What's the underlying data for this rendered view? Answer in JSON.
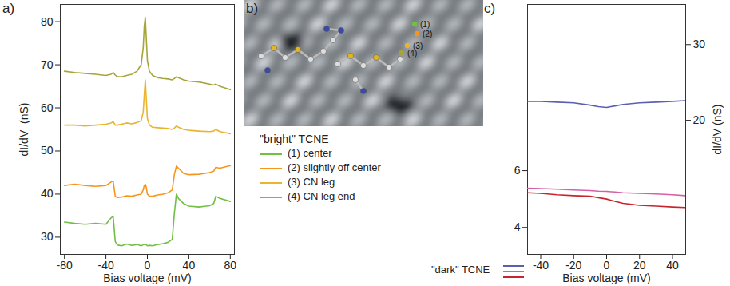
{
  "chart_data": [
    {
      "panel_label": "a)",
      "type": "line",
      "x_label": "Bias voltage (mV)",
      "y_label": "dI/dV  (nS)",
      "legend_title": "\"bright\" TCNE",
      "x": [
        -80,
        -70,
        -60,
        -50,
        -40,
        -35,
        -33,
        -31,
        -29,
        -25,
        -20,
        -15,
        -10,
        -6,
        -4,
        -3,
        -2,
        -1,
        0,
        2,
        5,
        10,
        15,
        20,
        24,
        26,
        28,
        30,
        35,
        40,
        50,
        60,
        64,
        66,
        70,
        80
      ],
      "xlim": [
        -84,
        84
      ],
      "xticks": [
        -80,
        -40,
        0,
        40,
        80
      ],
      "ylim": [
        26,
        84
      ],
      "yticks": [
        30,
        40,
        50,
        60,
        70,
        80
      ],
      "grid": false,
      "series": [
        {
          "name": "(1) center",
          "color": "#71bf44",
          "values": [
            33.5,
            33.2,
            33.0,
            33.2,
            33.0,
            34.5,
            34.8,
            29.0,
            28.2,
            28.0,
            28.4,
            28.1,
            28.3,
            28.0,
            28.2,
            28.3,
            28.4,
            28.2,
            28.0,
            28.1,
            28.0,
            28.3,
            28.5,
            28.8,
            29.5,
            35.5,
            40.0,
            39.0,
            37.8,
            37.2,
            37.0,
            37.3,
            37.8,
            39.5,
            39.0,
            38.3
          ]
        },
        {
          "name": "(2) slightly off center",
          "color": "#f7941d",
          "values": [
            42.0,
            42.3,
            42.0,
            41.8,
            42.0,
            42.8,
            43.0,
            39.5,
            39.2,
            39.3,
            39.6,
            39.5,
            39.8,
            40.0,
            41.0,
            42.0,
            42.3,
            41.5,
            40.0,
            39.5,
            39.5,
            39.8,
            40.0,
            40.3,
            41.0,
            44.5,
            46.5,
            46.0,
            44.8,
            44.5,
            44.6,
            45.0,
            45.3,
            46.2,
            46.0,
            46.6
          ]
        },
        {
          "name": "(3) CN leg",
          "color": "#e9b52e",
          "values": [
            56.0,
            56.0,
            55.8,
            56.0,
            56.2,
            56.5,
            56.8,
            56.0,
            56.0,
            56.2,
            56.5,
            56.3,
            56.6,
            57.0,
            59.0,
            63.0,
            66.5,
            62.0,
            57.5,
            56.0,
            55.5,
            55.4,
            55.3,
            55.2,
            55.0,
            55.3,
            55.8,
            55.5,
            55.0,
            54.8,
            54.6,
            54.5,
            54.6,
            55.0,
            54.5,
            54.0
          ]
        },
        {
          "name": "(4) CN leg end",
          "color": "#a6a53a",
          "values": [
            68.5,
            68.2,
            68.0,
            67.8,
            67.5,
            67.8,
            68.2,
            67.6,
            67.2,
            67.2,
            67.5,
            67.8,
            68.5,
            70.0,
            74.0,
            79.0,
            81.0,
            76.0,
            71.0,
            68.5,
            67.5,
            67.0,
            66.8,
            66.7,
            66.5,
            66.8,
            67.2,
            67.0,
            66.5,
            66.2,
            66.0,
            65.5,
            65.3,
            65.5,
            65.0,
            64.2
          ]
        }
      ]
    },
    {
      "panel_label": "c)",
      "type": "line",
      "x_label": "Bias voltage (mV)",
      "y2_label": "dI/dV (nS)",
      "legend_title": "\"dark\" TCNE",
      "x": [
        -48,
        -40,
        -30,
        -20,
        -10,
        -5,
        0,
        5,
        10,
        20,
        30,
        40,
        48
      ],
      "xlim": [
        -48,
        48
      ],
      "xticks": [
        -40,
        -20,
        0,
        20,
        40
      ],
      "ylim": [
        3.05,
        11.85
      ],
      "yticks": [
        4,
        6
      ],
      "y2lim": [
        2.3,
        35.3
      ],
      "y2ticks": [
        20,
        30
      ],
      "grid": false,
      "series": [
        {
          "color": "#5b5fb0",
          "axis": "y2",
          "values": [
            22.5,
            22.5,
            22.4,
            22.3,
            22.0,
            21.8,
            21.7,
            21.9,
            22.1,
            22.3,
            22.4,
            22.5,
            22.6
          ]
        },
        {
          "color": "#d65fa6",
          "values": [
            5.38,
            5.37,
            5.35,
            5.32,
            5.3,
            5.28,
            5.27,
            5.25,
            5.22,
            5.2,
            5.18,
            5.15,
            5.12
          ]
        },
        {
          "color": "#c8242e",
          "values": [
            5.22,
            5.2,
            5.15,
            5.12,
            5.1,
            5.05,
            5.0,
            4.92,
            4.85,
            4.78,
            4.75,
            4.72,
            4.7
          ]
        }
      ]
    }
  ],
  "image": {
    "panel_label": "b)",
    "point_labels": [
      "(1)",
      "(2)",
      "(3)",
      "(4)"
    ]
  }
}
